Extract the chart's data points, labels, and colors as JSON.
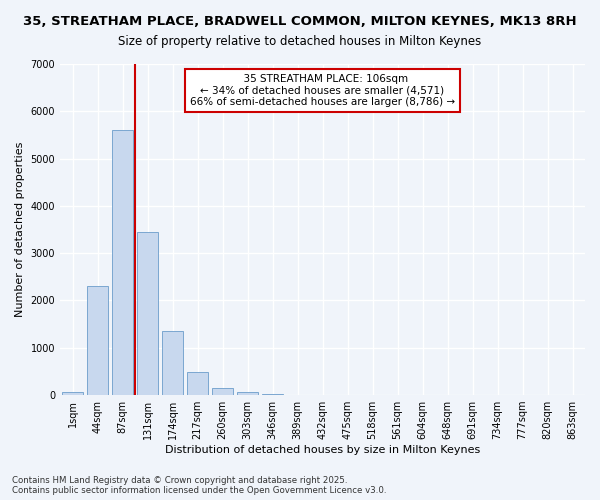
{
  "title": "35, STREATHAM PLACE, BRADWELL COMMON, MILTON KEYNES, MK13 8RH",
  "subtitle": "Size of property relative to detached houses in Milton Keynes",
  "xlabel": "Distribution of detached houses by size in Milton Keynes",
  "ylabel": "Number of detached properties",
  "footnote1": "Contains HM Land Registry data © Crown copyright and database right 2025.",
  "footnote2": "Contains public sector information licensed under the Open Government Licence v3.0.",
  "categories": [
    "1sqm",
    "44sqm",
    "87sqm",
    "131sqm",
    "174sqm",
    "217sqm",
    "260sqm",
    "303sqm",
    "346sqm",
    "389sqm",
    "432sqm",
    "475sqm",
    "518sqm",
    "561sqm",
    "604sqm",
    "648sqm",
    "691sqm",
    "734sqm",
    "777sqm",
    "820sqm",
    "863sqm"
  ],
  "values": [
    70,
    2300,
    5600,
    3450,
    1360,
    480,
    155,
    60,
    20,
    0,
    0,
    0,
    0,
    0,
    0,
    0,
    0,
    0,
    0,
    0,
    0
  ],
  "bar_color": "#c8d8ee",
  "bar_edge_color": "#7ba7d0",
  "property_bin_index": 2,
  "vline_x": 2.5,
  "annotation_text1": "  35 STREATHAM PLACE: 106sqm",
  "annotation_text2": "← 34% of detached houses are smaller (4,571)",
  "annotation_text3": "66% of semi-detached houses are larger (8,786) →",
  "annotation_box_color": "#ffffff",
  "annotation_border_color": "#cc0000",
  "vline_color": "#cc0000",
  "ylim": [
    0,
    7000
  ],
  "yticks": [
    0,
    1000,
    2000,
    3000,
    4000,
    5000,
    6000,
    7000
  ],
  "bg_color": "#f0f4fa",
  "plot_bg_color": "#f0f4fa",
  "grid_color": "#ffffff",
  "title_fontsize": 9.5,
  "subtitle_fontsize": 8.5,
  "axis_label_fontsize": 8,
  "tick_fontsize": 7,
  "annotation_fontsize": 7.5,
  "footnote_fontsize": 6.2
}
